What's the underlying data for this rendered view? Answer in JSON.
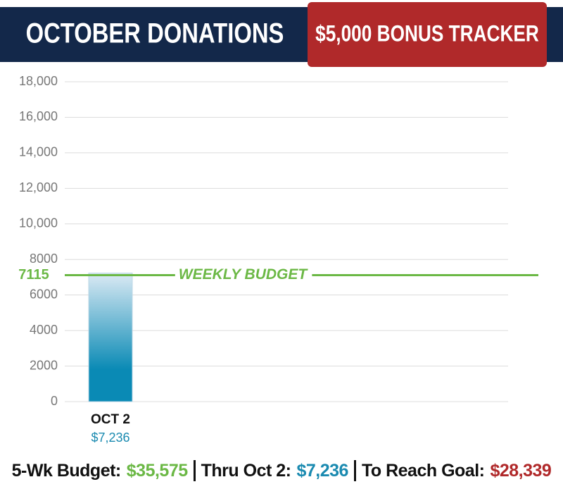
{
  "chart_data": {
    "type": "bar",
    "title": "OCTOBER DONATIONS",
    "badge": "$5,000 BONUS TRACKER",
    "categories": [
      "OCT 2"
    ],
    "values": [
      7236
    ],
    "value_labels": [
      "$7,236"
    ],
    "color": "#0a8ab5",
    "ylim": [
      0,
      18000
    ],
    "yticks": [
      0,
      2000,
      4000,
      6000,
      8000,
      {
        "value": 10000,
        "label": "10,000"
      },
      {
        "value": 12000,
        "label": "12,000"
      },
      {
        "value": 14000,
        "label": "14,000"
      },
      {
        "value": 16000,
        "label": "16,000"
      },
      {
        "value": 18000,
        "label": "18,000"
      }
    ],
    "grid": true,
    "reference_line": {
      "value": 7115,
      "label": "WEEKLY BUDGET",
      "color": "#6bb845"
    }
  },
  "footer": [
    {
      "label": "5-Wk Budget:",
      "value": "$35,575",
      "color": "#6bb845"
    },
    {
      "label": "Thru Oct 2:",
      "value": "$7,236",
      "color": "#1a8ab0"
    },
    {
      "label": "To Reach Goal:",
      "value": "$28,339",
      "color": "#b0292a"
    }
  ]
}
